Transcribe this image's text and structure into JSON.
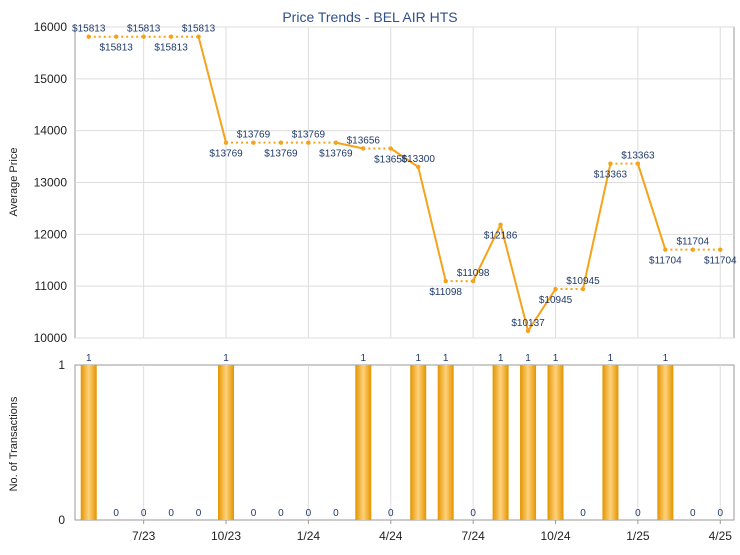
{
  "chart_data": [
    {
      "type": "line",
      "title": "Price Trends - BEL AIR HTS",
      "ylabel": "Average Price",
      "ylim": [
        10000,
        16000
      ],
      "yticks": [
        10000,
        11000,
        12000,
        13000,
        14000,
        15000,
        16000
      ],
      "grid": true,
      "color": "#f5a31a",
      "x": [
        "5/23",
        "6/23",
        "7/23",
        "8/23",
        "9/23",
        "10/23",
        "11/23",
        "12/23",
        "1/24",
        "2/24",
        "3/24",
        "4/24",
        "5/24",
        "6/24",
        "7/24",
        "8/24",
        "9/24",
        "10/24",
        "11/24",
        "12/24",
        "1/25",
        "2/25",
        "3/25",
        "4/25"
      ],
      "xtick_labels": [
        "7/23",
        "10/23",
        "1/24",
        "4/24",
        "7/24",
        "10/24",
        "1/25",
        "4/25"
      ],
      "values": [
        15813,
        15813,
        15813,
        15813,
        15813,
        13769,
        13769,
        13769,
        13769,
        13769,
        13656,
        13656,
        13300,
        11098,
        11098,
        12186,
        10137,
        10945,
        10945,
        13363,
        13363,
        11704,
        11704,
        11704
      ],
      "point_labels": [
        "$15813",
        "$15813",
        "$15813",
        "$15813",
        "$15813",
        "$13769",
        "$13769",
        "$13769",
        "$13769",
        "$13769",
        "$13656",
        "$13656",
        "$13300",
        "$11098",
        "$11098",
        "$12186",
        "$10137",
        "$10945",
        "$10945",
        "$13363",
        "$13363",
        "$11704",
        "$11704",
        "$11704"
      ]
    },
    {
      "type": "bar",
      "ylabel": "No. of Transactions",
      "ylim": [
        0,
        1
      ],
      "yticks": [
        0,
        1
      ],
      "color": "#f0a500",
      "values": [
        1,
        0,
        0,
        0,
        0,
        1,
        0,
        0,
        0,
        0,
        1,
        0,
        1,
        1,
        0,
        1,
        1,
        1,
        0,
        1,
        0,
        1,
        0,
        0
      ],
      "value_labels": [
        "1",
        "0",
        "0",
        "0",
        "0",
        "1",
        "0",
        "0",
        "0",
        "0",
        "1",
        "0",
        "1",
        "1",
        "0",
        "1",
        "1",
        "1",
        "0",
        "1",
        "0",
        "1",
        "0",
        "0"
      ]
    }
  ]
}
